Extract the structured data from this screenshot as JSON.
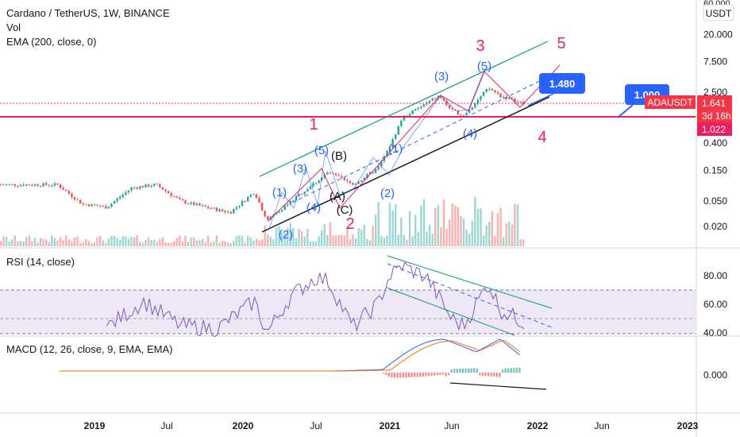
{
  "header": {
    "symbol_line": "Cardano / TetherUS, 1W, BINANCE",
    "vol_label": "Vol",
    "ema_label": "EMA (200, close, 0)",
    "rsi_label": "RSI (14, close)",
    "macd_label": "MACD (12, 26, close, 9, EMA, EMA)"
  },
  "price_axis": {
    "currency": "USDT",
    "ticks": [
      "60.000",
      "20.000",
      "7.500",
      "2.500",
      "0.400",
      "0.150",
      "0.050",
      "0.020"
    ],
    "ticks_values": [
      60,
      20,
      7.5,
      2.5,
      0.4,
      0.15,
      0.05,
      0.02
    ],
    "scale": "log"
  },
  "badges": {
    "symbol": "ADAUSDT",
    "price": "1.641",
    "countdown": "3d 16h",
    "level": "1.022",
    "target_high": "1.480",
    "target_low": "1.000"
  },
  "rsi_axis": {
    "ticks": [
      "80.00",
      "60.00",
      "40.00"
    ],
    "ticks_values": [
      80,
      60,
      40
    ],
    "upper_band": 70,
    "lower_band": 30
  },
  "macd_axis": {
    "ticks": [
      "0.000"
    ],
    "ticks_values": [
      0
    ]
  },
  "time_axis": {
    "labels": [
      "2019",
      "Jul",
      "2020",
      "Jul",
      "2021",
      "Jun",
      "2022",
      "Jun",
      "2023"
    ],
    "label_bold": [
      true,
      false,
      true,
      false,
      true,
      false,
      true,
      false,
      true
    ]
  },
  "wave_labels": {
    "primary": [
      "1",
      "2",
      "3",
      "4",
      "5"
    ],
    "intermediate": [
      "(1)",
      "(2)",
      "(3)",
      "(4)",
      "(5)"
    ],
    "correction": [
      "(A)",
      "(B)",
      "(C)"
    ]
  },
  "colors": {
    "up": "#26a69a",
    "down": "#ef5350",
    "wave_primary": "#e91e63",
    "wave_intermediate": "#2962ff",
    "channel": "#089981",
    "rsi_line": "#7e57c2",
    "rsi_band": "#ede7f6",
    "macd_line": "#2962ff",
    "signal_line": "#ff6d00",
    "badge_blue": "#2962ff",
    "badge_red": "#f23645",
    "hline": "#e91e63"
  },
  "chart_data": {
    "type": "line",
    "title": "Cardano / TetherUS, 1W, BINANCE",
    "scale": "log",
    "ylim": [
      0.015,
      60
    ],
    "horizontal_levels": [
      1.641,
      1.022
    ],
    "price_path": {
      "x": [
        "2018-10",
        "2018-12",
        "2019-02",
        "2019-04",
        "2019-06",
        "2019-08",
        "2019-10",
        "2019-12",
        "2020-02",
        "2020-03",
        "2020-05",
        "2020-07",
        "2020-08",
        "2020-10",
        "2020-12",
        "2021-01",
        "2021-02",
        "2021-03",
        "2021-05",
        "2021-06",
        "2021-07",
        "2021-09",
        "2021-10",
        "2021-11",
        "2021-12"
      ],
      "y": [
        0.09,
        0.045,
        0.04,
        0.08,
        0.09,
        0.05,
        0.04,
        0.033,
        0.07,
        0.025,
        0.05,
        0.1,
        0.14,
        0.09,
        0.16,
        0.35,
        1.0,
        1.3,
        2.2,
        1.3,
        1.1,
        2.9,
        2.2,
        1.9,
        1.6
      ]
    },
    "rsi": {
      "x": [
        "2019-02",
        "2019-05",
        "2019-08",
        "2019-11",
        "2020-02",
        "2020-03",
        "2020-05",
        "2020-07",
        "2020-08",
        "2020-10",
        "2020-12",
        "2021-01",
        "2021-02",
        "2021-04",
        "2021-06",
        "2021-07",
        "2021-09",
        "2021-10",
        "2021-12"
      ],
      "y": [
        44,
        62,
        45,
        43,
        62,
        40,
        66,
        79,
        76,
        44,
        60,
        80,
        87,
        79,
        50,
        45,
        75,
        56,
        47
      ]
    }
  }
}
